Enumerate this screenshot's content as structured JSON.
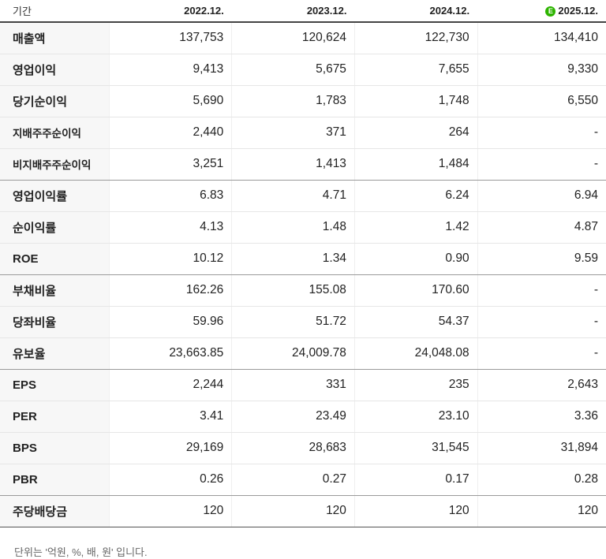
{
  "header": {
    "period_label": "기간",
    "columns": [
      "2022.12.",
      "2023.12.",
      "2024.12.",
      "2025.12."
    ],
    "estimate_badge": "E",
    "estimate_badge_color": "#2db400"
  },
  "rows": [
    {
      "label": "매출액",
      "values": [
        "137,753",
        "120,624",
        "122,730",
        "134,410"
      ]
    },
    {
      "label": "영업이익",
      "values": [
        "9,413",
        "5,675",
        "7,655",
        "9,330"
      ]
    },
    {
      "label": "당기순이익",
      "values": [
        "5,690",
        "1,783",
        "1,748",
        "6,550"
      ]
    },
    {
      "label": "지배주주순이익",
      "values": [
        "2,440",
        "371",
        "264",
        "-"
      ]
    },
    {
      "label": "비지배주주순이익",
      "values": [
        "3,251",
        "1,413",
        "1,484",
        "-"
      ]
    },
    {
      "label": "영업이익률",
      "values": [
        "6.83",
        "4.71",
        "6.24",
        "6.94"
      ]
    },
    {
      "label": "순이익률",
      "values": [
        "4.13",
        "1.48",
        "1.42",
        "4.87"
      ]
    },
    {
      "label": "ROE",
      "values": [
        "10.12",
        "1.34",
        "0.90",
        "9.59"
      ]
    },
    {
      "label": "부채비율",
      "values": [
        "162.26",
        "155.08",
        "170.60",
        "-"
      ]
    },
    {
      "label": "당좌비율",
      "values": [
        "59.96",
        "51.72",
        "54.37",
        "-"
      ]
    },
    {
      "label": "유보율",
      "values": [
        "23,663.85",
        "24,009.78",
        "24,048.08",
        "-"
      ]
    },
    {
      "label": "EPS",
      "values": [
        "2,244",
        "331",
        "235",
        "2,643"
      ]
    },
    {
      "label": "PER",
      "values": [
        "3.41",
        "23.49",
        "23.10",
        "3.36"
      ]
    },
    {
      "label": "BPS",
      "values": [
        "29,169",
        "28,683",
        "31,545",
        "31,894"
      ]
    },
    {
      "label": "PBR",
      "values": [
        "0.26",
        "0.27",
        "0.17",
        "0.28"
      ]
    },
    {
      "label": "주당배당금",
      "values": [
        "120",
        "120",
        "120",
        "120"
      ]
    }
  ],
  "footnote": "단위는 '억원, %, 배, 원' 입니다."
}
